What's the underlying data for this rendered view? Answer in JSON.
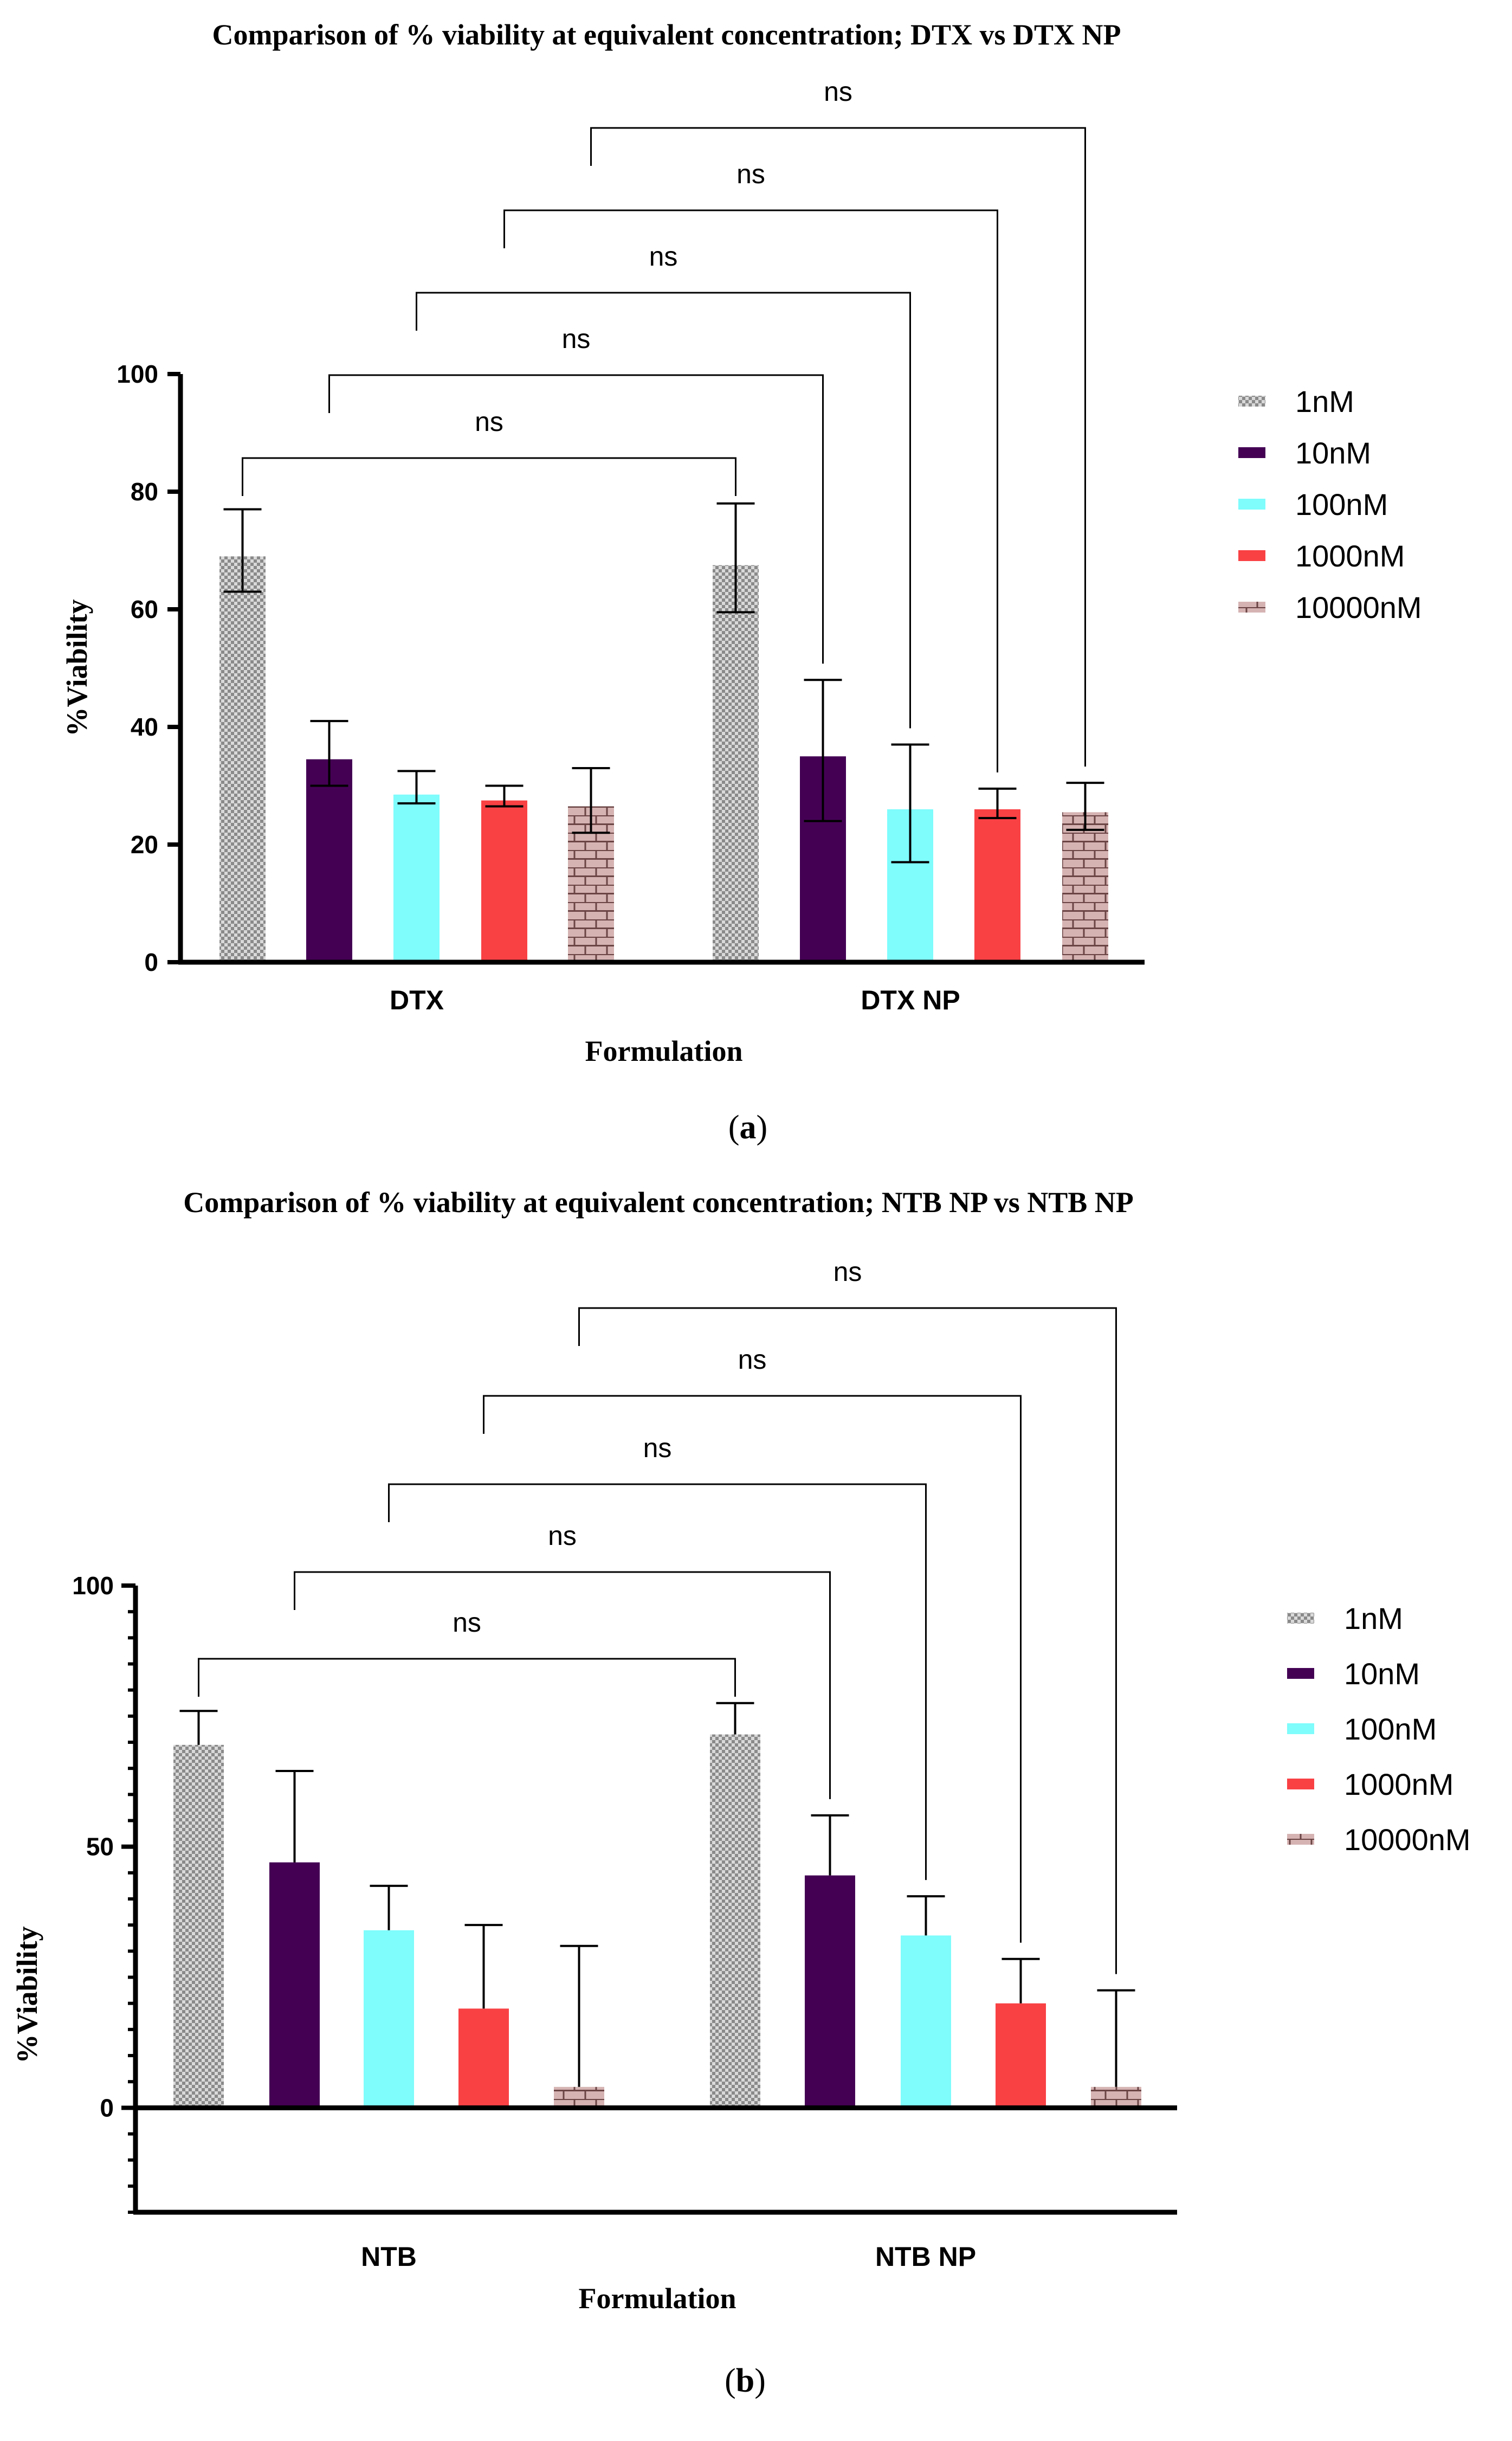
{
  "chart_data": [
    {
      "type": "bar",
      "title": "Comparison of % viability at equivalent concentration; DTX vs DTX NP",
      "xlabel": "Formulation",
      "ylabel": "%Viability",
      "caption": {
        "open": "(",
        "letter": "a",
        "close": ")"
      },
      "categories": [
        "DTX",
        "DTX NP"
      ],
      "ylim": [
        0,
        100
      ],
      "yticks": [
        0,
        20,
        40,
        60,
        80,
        100
      ],
      "minor_ticks": false,
      "series": [
        {
          "name": "1nM",
          "color": "#c8c8c8",
          "pattern": "checker",
          "values": [
            69,
            67.5
          ],
          "err_low": [
            63,
            59.5
          ],
          "err_high": [
            77,
            78
          ]
        },
        {
          "name": "10nM",
          "color": "#440154",
          "pattern": "solid",
          "values": [
            34.5,
            35
          ],
          "err_low": [
            30,
            24
          ],
          "err_high": [
            41,
            48
          ]
        },
        {
          "name": "100nM",
          "color": "#7ffcfc",
          "pattern": "solid",
          "values": [
            28.5,
            26
          ],
          "err_low": [
            27,
            17
          ],
          "err_high": [
            32.5,
            37
          ]
        },
        {
          "name": "1000nM",
          "color": "#f94144",
          "pattern": "solid",
          "values": [
            27.5,
            26
          ],
          "err_low": [
            26.5,
            24.5
          ],
          "err_high": [
            30,
            29.5
          ]
        },
        {
          "name": "10000nM",
          "color": "#d6b3b3",
          "pattern": "brick",
          "values": [
            26.5,
            25.5
          ],
          "err_low": [
            22,
            22.5
          ],
          "err_high": [
            33,
            30.5
          ]
        }
      ],
      "significance": [
        {
          "series": 0,
          "label": "ns"
        },
        {
          "series": 1,
          "label": "ns"
        },
        {
          "series": 2,
          "label": "ns"
        },
        {
          "series": 3,
          "label": "ns"
        },
        {
          "series": 4,
          "label": "ns"
        }
      ]
    },
    {
      "type": "bar",
      "title": "Comparison of % viability at equivalent concentration; NTB NP vs NTB NP",
      "xlabel": "Formulation",
      "ylabel": "%Viability",
      "caption": {
        "open": "(",
        "letter": "b",
        "close": ")"
      },
      "categories": [
        "NTB",
        "NTB NP"
      ],
      "ylim": [
        -20,
        100
      ],
      "yticks": [
        0,
        50,
        100
      ],
      "minor_ticks": true,
      "series": [
        {
          "name": "1nM",
          "color": "#c8c8c8",
          "pattern": "checker",
          "values": [
            69.5,
            71.5
          ],
          "err_low": null,
          "err_high": [
            76,
            77.5
          ]
        },
        {
          "name": "10nM",
          "color": "#440154",
          "pattern": "solid",
          "values": [
            47,
            44.5
          ],
          "err_low": null,
          "err_high": [
            64.5,
            56
          ]
        },
        {
          "name": "100nM",
          "color": "#7ffcfc",
          "pattern": "solid",
          "values": [
            34,
            33
          ],
          "err_low": null,
          "err_high": [
            42.5,
            40.5
          ]
        },
        {
          "name": "1000nM",
          "color": "#f94144",
          "pattern": "solid",
          "values": [
            19,
            20
          ],
          "err_low": null,
          "err_high": [
            35,
            28.5
          ]
        },
        {
          "name": "10000nM",
          "color": "#d6b3b3",
          "pattern": "brick",
          "values": [
            4,
            4
          ],
          "err_low": null,
          "err_high": [
            31,
            22.5
          ]
        }
      ],
      "significance": [
        {
          "series": 0,
          "label": "ns"
        },
        {
          "series": 1,
          "label": "ns"
        },
        {
          "series": 2,
          "label": "ns"
        },
        {
          "series": 3,
          "label": "ns"
        },
        {
          "series": 4,
          "label": "ns"
        }
      ]
    }
  ]
}
